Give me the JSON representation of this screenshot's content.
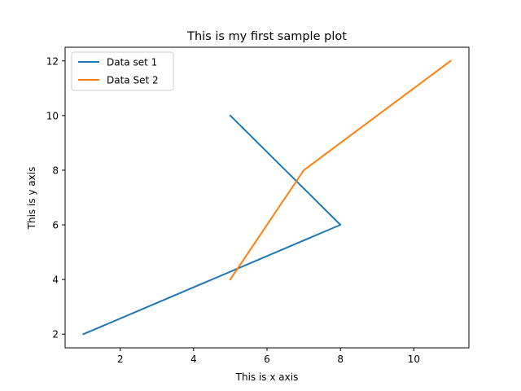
{
  "chart_data": {
    "type": "line",
    "title": "This is my first sample plot",
    "xlabel": "This is x axis",
    "ylabel": "This is y axis",
    "xlim": [
      0.5,
      11.5
    ],
    "ylim": [
      1.5,
      12.5
    ],
    "xticks": [
      2,
      4,
      6,
      8,
      10
    ],
    "yticks": [
      2,
      4,
      6,
      8,
      10,
      12
    ],
    "grid": false,
    "legend_position": "top-left",
    "series": [
      {
        "name": "Data set 1",
        "color": "#1f77b4",
        "x": [
          1,
          8,
          5
        ],
        "y": [
          2,
          6,
          10
        ]
      },
      {
        "name": "Data Set 2",
        "color": "#ff7f0e",
        "x": [
          5,
          7,
          11
        ],
        "y": [
          4,
          8,
          12
        ]
      }
    ]
  }
}
